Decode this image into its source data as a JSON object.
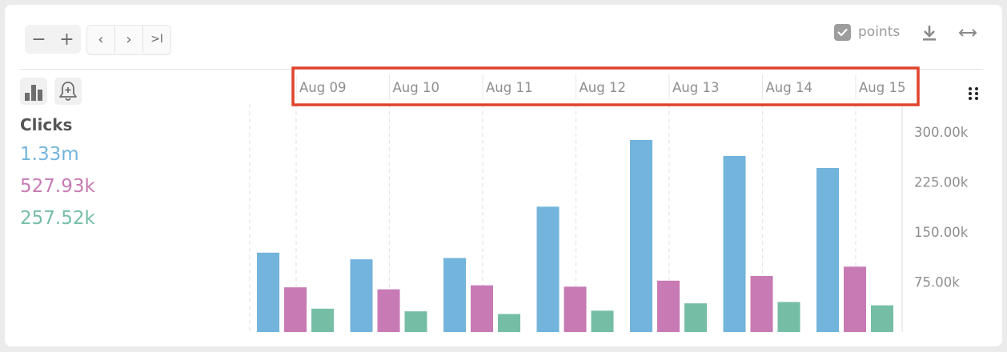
{
  "toolbar": {
    "zoom_out_glyph": "−",
    "zoom_in_glyph": "+",
    "prev_glyph": "‹",
    "next_glyph": "›",
    "last_glyph": ">I",
    "points_label": "points",
    "points_checked": true
  },
  "sidebar": {
    "metric_title": "Clicks",
    "totals": [
      {
        "value": "1.33m",
        "color": "#72b4dc"
      },
      {
        "value": "527.93k",
        "color": "#c87ab4"
      },
      {
        "value": "257.52k",
        "color": "#75bea5"
      }
    ]
  },
  "chart_data": {
    "type": "bar",
    "categories": [
      "Aug 09",
      "Aug 10",
      "Aug 11",
      "Aug 12",
      "Aug 13",
      "Aug 14",
      "Aug 15"
    ],
    "series": [
      {
        "color": "#72b4dc",
        "values": [
          119000,
          109000,
          111000,
          188000,
          288000,
          264000,
          246000
        ]
      },
      {
        "color": "#c87ab4",
        "values": [
          67000,
          64000,
          70000,
          68000,
          77000,
          84000,
          98000
        ]
      },
      {
        "color": "#75bea5",
        "values": [
          35000,
          31000,
          27000,
          32000,
          43000,
          45000,
          40000
        ]
      }
    ],
    "y_ticks": [
      75000,
      150000,
      225000,
      300000
    ],
    "y_tick_labels": [
      "75.00k",
      "150.00k",
      "225.00k",
      "300.00k"
    ],
    "ylim": [
      0,
      330000
    ],
    "grid": true,
    "x_axis_position": "top",
    "y_axis_position": "right",
    "highlight_color": "#e0442c"
  }
}
